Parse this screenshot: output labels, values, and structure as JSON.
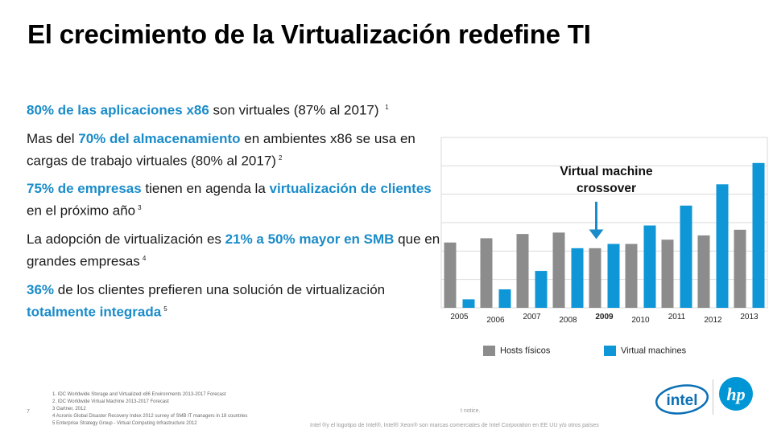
{
  "slide": {
    "title": "El crecimiento de la Virtualización redefine TI",
    "page_number": "7"
  },
  "bullets": [
    {
      "parts": [
        {
          "text": "80% de las aplicaciones x86",
          "highlight": true
        },
        {
          "text": " son virtuales (87% al 2017) ",
          "highlight": false
        }
      ],
      "sup": "1"
    },
    {
      "parts": [
        {
          "text": "Mas del ",
          "highlight": false
        },
        {
          "text": "70% del almacenamiento",
          "highlight": true
        },
        {
          "text": " en ambientes x86 se usa en cargas de trabajo virtuales (80% al 2017)",
          "highlight": false
        }
      ],
      "sup": "2"
    },
    {
      "parts": [
        {
          "text": "75% de empresas",
          "highlight": true
        },
        {
          "text": " tienen en agenda la ",
          "highlight": false
        },
        {
          "text": "virtualización de clientes",
          "highlight": true
        },
        {
          "text": " en el próximo año",
          "highlight": false
        }
      ],
      "sup": "3"
    },
    {
      "parts": [
        {
          "text": "La adopción de virtualización es ",
          "highlight": false
        },
        {
          "text": "21% a 50% mayor en SMB",
          "highlight": true
        },
        {
          "text": " que en grandes empresas",
          "highlight": false
        }
      ],
      "sup": "4"
    },
    {
      "parts": [
        {
          "text": "36%",
          "highlight": true
        },
        {
          "text": " de los clientes prefieren una solución de virtualización ",
          "highlight": false
        },
        {
          "text": "totalmente integrada",
          "highlight": true
        }
      ],
      "sup": "5"
    }
  ],
  "chart_data": {
    "type": "bar",
    "categories": [
      "2005",
      "2006",
      "2007",
      "2008",
      "2009",
      "2010",
      "2011",
      "2012",
      "2013"
    ],
    "emphasized_category": "2009",
    "series": [
      {
        "name": "Hosts físicos",
        "color": "#8c8c8c",
        "values": [
          4.6,
          4.9,
          5.2,
          5.3,
          4.2,
          4.5,
          4.8,
          5.1,
          5.5
        ]
      },
      {
        "name": "Virtual machines",
        "color": "#0f96d7",
        "values": [
          0.6,
          1.3,
          2.6,
          4.2,
          4.5,
          5.8,
          7.2,
          8.7,
          10.2
        ]
      }
    ],
    "annotation": "Virtual machine crossover",
    "annotation_target": "2009",
    "xlabel": "",
    "ylabel": "",
    "ylim": [
      0,
      12
    ],
    "grid": true,
    "legend_position": "bottom"
  },
  "footnotes": [
    "1. IDC Worldwide Storage and Virtualized x86 Environments 2013-2017 Forecast",
    "2. IDC Worldwide Virtual Machine 2013-2017 Forecast",
    "3 Gartner, 2012",
    "4 Acronis Global Disaster Recovery Index 2012 survey of SMB IT managers in 18 countries",
    "5 Enterprise Strategy Group - Virtual Computing Infrastructure 2012"
  ],
  "disclaimer": "Intel ®y el logotipo de Intel®, Intel® Xeon® son marcas comerciales de Intel Corporation en EE UU y/o otros países",
  "notice": "t notice.",
  "logos": {
    "intel": "intel",
    "hp": "hp"
  },
  "colors": {
    "accent": "#1a8cc9",
    "grid": "#d9d9d9"
  }
}
